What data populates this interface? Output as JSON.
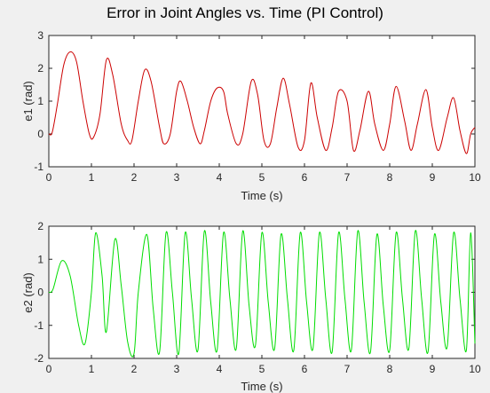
{
  "figure": {
    "title": "Error in Joint Angles vs. Time (PI Control)"
  },
  "chart_data": [
    {
      "type": "line",
      "xlabel": "Time (s)",
      "ylabel": "e1 (rad)",
      "xlim": [
        0,
        10
      ],
      "ylim": [
        -1,
        3
      ],
      "xticks": [
        0,
        1,
        2,
        3,
        4,
        5,
        6,
        7,
        8,
        9,
        10
      ],
      "yticks": [
        -1,
        0,
        1,
        2,
        3
      ],
      "grid": false,
      "series": [
        {
          "color": "#cc0000",
          "x": [
            0,
            0.08,
            0.2,
            0.35,
            0.5,
            0.65,
            0.8,
            0.95,
            1.05,
            1.2,
            1.35,
            1.5,
            1.7,
            1.85,
            1.95,
            2.1,
            2.25,
            2.4,
            2.6,
            2.7,
            2.85,
            3.0,
            3.1,
            3.25,
            3.4,
            3.55,
            3.65,
            3.8,
            3.95,
            4.1,
            4.2,
            4.4,
            4.55,
            4.75,
            4.9,
            5.05,
            5.2,
            5.35,
            5.5,
            5.65,
            5.85,
            6.0,
            6.15,
            6.3,
            6.5,
            6.65,
            6.8,
            7.0,
            7.15,
            7.3,
            7.5,
            7.65,
            7.85,
            8.0,
            8.15,
            8.35,
            8.5,
            8.65,
            8.85,
            9.0,
            9.15,
            9.35,
            9.5,
            9.65,
            9.8,
            9.9,
            10.0
          ],
          "y": [
            0,
            0.05,
            0.9,
            2.1,
            2.5,
            2.2,
            1.0,
            0.0,
            -0.1,
            0.6,
            2.25,
            1.8,
            0.3,
            -0.2,
            -0.2,
            1.0,
            1.95,
            1.6,
            0.2,
            -0.3,
            0.0,
            1.3,
            1.6,
            1.0,
            0.2,
            -0.3,
            0.1,
            1.0,
            1.4,
            1.3,
            0.6,
            -0.3,
            0.0,
            1.6,
            1.2,
            -0.2,
            -0.3,
            0.8,
            1.7,
            0.9,
            -0.4,
            -0.2,
            1.55,
            0.5,
            -0.5,
            0.2,
            1.3,
            1.0,
            -0.5,
            0.1,
            1.3,
            0.3,
            -0.5,
            0.3,
            1.45,
            0.4,
            -0.5,
            0.3,
            1.35,
            0.2,
            -0.5,
            0.5,
            1.1,
            0.1,
            -0.6,
            0.0,
            0.2
          ]
        }
      ]
    },
    {
      "type": "line",
      "xlabel": "Time (s)",
      "ylabel": "e2 (rad)",
      "xlim": [
        0,
        10
      ],
      "ylim": [
        -2,
        2
      ],
      "xticks": [
        0,
        1,
        2,
        3,
        4,
        5,
        6,
        7,
        8,
        9,
        10
      ],
      "yticks": [
        -2,
        -1,
        0,
        1,
        2
      ],
      "grid": false,
      "series": [
        {
          "color": "#00dd00",
          "x": [
            0,
            0.1,
            0.3,
            0.5,
            0.7,
            0.85,
            1.0,
            1.1,
            1.25,
            1.35,
            1.55,
            1.7,
            1.85,
            2.0,
            2.1,
            2.3,
            2.45,
            2.6,
            2.75,
            2.9,
            3.05,
            3.2,
            3.35,
            3.5,
            3.65,
            3.8,
            3.95,
            4.1,
            4.25,
            4.4,
            4.55,
            4.7,
            4.85,
            5.0,
            5.15,
            5.3,
            5.45,
            5.6,
            5.75,
            5.9,
            6.05,
            6.2,
            6.35,
            6.5,
            6.65,
            6.8,
            6.95,
            7.1,
            7.25,
            7.4,
            7.55,
            7.7,
            7.85,
            8.0,
            8.15,
            8.3,
            8.45,
            8.6,
            8.75,
            8.9,
            9.05,
            9.2,
            9.35,
            9.5,
            9.65,
            9.8,
            9.9,
            10.0
          ],
          "y": [
            0,
            0.1,
            0.95,
            0.5,
            -1.0,
            -1.55,
            0.0,
            1.8,
            0.5,
            -1.2,
            1.6,
            0.2,
            -1.5,
            -1.85,
            0.0,
            1.75,
            -0.5,
            -1.8,
            1.8,
            0.0,
            -1.85,
            1.8,
            -0.2,
            -1.75,
            1.85,
            -0.3,
            -1.75,
            1.8,
            -0.2,
            -1.7,
            1.85,
            -0.4,
            -1.6,
            1.8,
            -0.3,
            -1.7,
            1.75,
            -0.2,
            -1.75,
            1.8,
            -0.3,
            -1.7,
            1.8,
            -0.2,
            -1.8,
            1.8,
            -0.2,
            -1.75,
            1.85,
            -0.3,
            -1.8,
            1.75,
            -0.4,
            -1.75,
            1.8,
            -0.2,
            -1.7,
            1.85,
            -0.2,
            -1.8,
            1.75,
            -0.3,
            -1.65,
            1.8,
            -0.2,
            -1.75,
            1.8,
            -1.55
          ]
        }
      ]
    }
  ]
}
